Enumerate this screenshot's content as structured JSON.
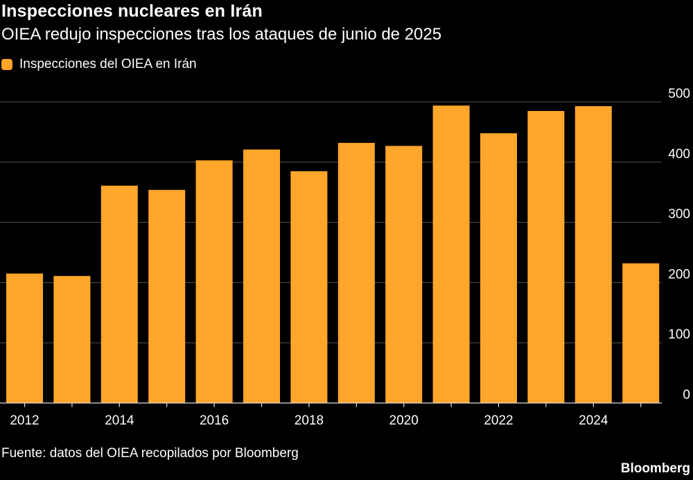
{
  "header": {
    "title": "Inspecciones nucleares en Irán",
    "subtitle": "OIEA redujo inspecciones tras los ataques de junio de 2025"
  },
  "legend": {
    "label": "Inspecciones del OIEA en Irán",
    "color": "#FFA62B"
  },
  "footer": {
    "source": "Fuente: datos del OIEA recopilados por Bloomberg",
    "brand": "Bloomberg"
  },
  "colors": {
    "background": "#000000",
    "bar": "#FFA62B",
    "grid": "#555555",
    "text": "#ffffff"
  },
  "chart_data": {
    "type": "bar",
    "title": "Inspecciones nucleares en Irán",
    "subtitle": "OIEA redujo inspecciones tras los ataques de junio de 2025",
    "categories": [
      "2012",
      "2013",
      "2014",
      "2015",
      "2016",
      "2017",
      "2018",
      "2019",
      "2020",
      "2021",
      "2022",
      "2023",
      "2024",
      "2025"
    ],
    "series": [
      {
        "name": "Inspecciones del OIEA en Irán",
        "values": [
          215,
          211,
          361,
          354,
          403,
          421,
          385,
          432,
          427,
          494,
          448,
          485,
          493,
          232
        ]
      }
    ],
    "x_tick_labels": [
      "2012",
      "2014",
      "2016",
      "2018",
      "2020",
      "2022",
      "2024"
    ],
    "y_ticks": [
      0,
      100,
      200,
      300,
      400,
      500
    ],
    "ylim": [
      0,
      500
    ],
    "xlabel": "",
    "ylabel": "",
    "y_axis_side": "right",
    "grid": true,
    "legend_position": "top-left"
  }
}
